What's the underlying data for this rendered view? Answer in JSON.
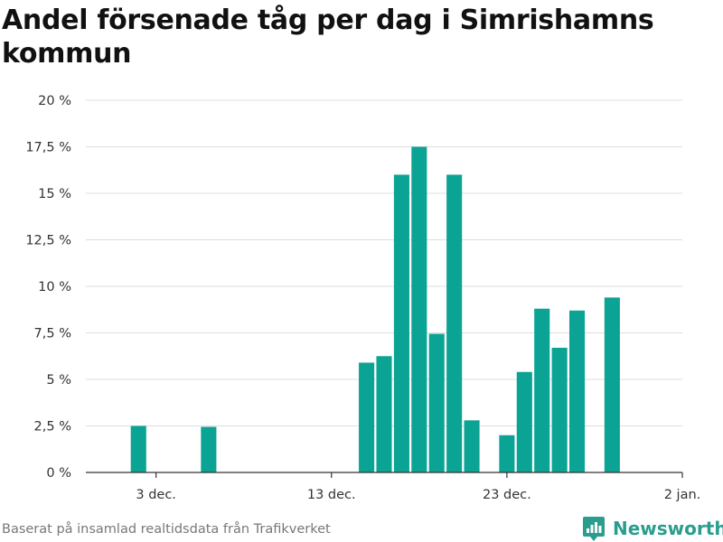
{
  "title": "Andel försenade tåg per dag i Simrishamns kommun",
  "footer": {
    "source": "Baserat på insamlad realtidsdata från Trafikverket",
    "brand": "Newsworthy"
  },
  "colors": {
    "bar": "#0aa394",
    "grid": "#dddddd",
    "axis": "#333333",
    "text": "#333333",
    "brand": "#2a9d8f"
  },
  "icons": {
    "brand_logo": "newsworthy-logo-icon"
  },
  "chart_data": {
    "type": "bar",
    "title": "Andel försenade tåg per dag i Simrishamns kommun",
    "xlabel": "",
    "ylabel": "",
    "x_start": "2023-11-29",
    "x_end": "2024-01-02",
    "ylim": [
      0,
      20
    ],
    "yticks": [
      0,
      2.5,
      5,
      7.5,
      10,
      12.5,
      15,
      17.5,
      20
    ],
    "ytick_labels": [
      "0 %",
      "2,5 %",
      "5 %",
      "7,5 %",
      "10 %",
      "12,5 %",
      "15 %",
      "17,5 %",
      "20 %"
    ],
    "xticks": [
      {
        "date": "2023-12-03",
        "label": "3 dec."
      },
      {
        "date": "2023-12-13",
        "label": "13 dec."
      },
      {
        "date": "2023-12-23",
        "label": "23 dec."
      },
      {
        "date": "2024-01-02",
        "label": "2 jan."
      }
    ],
    "grid": true,
    "legend": "none",
    "series": [
      {
        "points": [
          {
            "date": "2023-12-02",
            "value": 2.5
          },
          {
            "date": "2023-12-06",
            "value": 2.45
          },
          {
            "date": "2023-12-15",
            "value": 5.9
          },
          {
            "date": "2023-12-16",
            "value": 6.25
          },
          {
            "date": "2023-12-17",
            "value": 16.0
          },
          {
            "date": "2023-12-18",
            "value": 17.5
          },
          {
            "date": "2023-12-19",
            "value": 7.45
          },
          {
            "date": "2023-12-20",
            "value": 16.0
          },
          {
            "date": "2023-12-21",
            "value": 2.8
          },
          {
            "date": "2023-12-23",
            "value": 2.0
          },
          {
            "date": "2023-12-24",
            "value": 5.4
          },
          {
            "date": "2023-12-25",
            "value": 8.8
          },
          {
            "date": "2023-12-26",
            "value": 6.7
          },
          {
            "date": "2023-12-27",
            "value": 8.7
          },
          {
            "date": "2023-12-29",
            "value": 9.4
          }
        ]
      }
    ]
  }
}
